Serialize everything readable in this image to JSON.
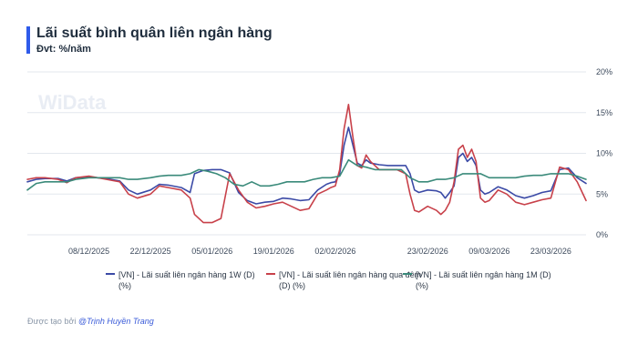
{
  "header": {
    "title": "Lãi suất bình quân liên ngân hàng",
    "subtitle": "Đvt: %/năm"
  },
  "footer": {
    "prefix": "Được tạo bởi",
    "author": "@Trịnh Huyền Trang"
  },
  "watermark": "WiData",
  "colors": {
    "series_1w": "#3b4aa6",
    "series_on": "#c8414a",
    "series_1m": "#3a8a7a",
    "grid": "#e3e7ee",
    "text": "#1f2d3d"
  },
  "chart_data": {
    "type": "line",
    "title": "Lãi suất bình quân liên ngân hàng",
    "subtitle": "Đvt: %/năm",
    "y_axis_side": "right",
    "ylim": [
      0,
      20
    ],
    "y_ticks": [
      0,
      5,
      10,
      15,
      20
    ],
    "y_tick_labels": [
      "0%",
      "5%",
      "10%",
      "15%",
      "20%"
    ],
    "x_range": [
      "2025-11-24",
      "2026-03-31"
    ],
    "x_ticks": [
      {
        "date": "2025-12-08",
        "label": "08/12/2025"
      },
      {
        "date": "2025-12-22",
        "label": "22/12/2025"
      },
      {
        "date": "2026-01-05",
        "label": "05/01/2026"
      },
      {
        "date": "2026-01-19",
        "label": "19/01/2026"
      },
      {
        "date": "2026-02-02",
        "label": "02/02/2026"
      },
      {
        "date": "2026-02-23",
        "label": "23/02/2026"
      },
      {
        "date": "2026-03-09",
        "label": "09/03/2026"
      },
      {
        "date": "2026-03-23",
        "label": "23/03/2026"
      }
    ],
    "grid": true,
    "legend_position": "bottom",
    "series": [
      {
        "name": "[VN] - Lãi suất liên ngân hàng 1W (D) (%)",
        "color": "#3b4aa6",
        "points": [
          [
            "2025-11-24",
            6.5
          ],
          [
            "2025-11-26",
            6.8
          ],
          [
            "2025-11-28",
            6.9
          ],
          [
            "2025-12-01",
            6.9
          ],
          [
            "2025-12-03",
            6.6
          ],
          [
            "2025-12-05",
            7.0
          ],
          [
            "2025-12-08",
            7.1
          ],
          [
            "2025-12-10",
            7.0
          ],
          [
            "2025-12-12",
            6.9
          ],
          [
            "2025-12-15",
            6.6
          ],
          [
            "2025-12-17",
            5.5
          ],
          [
            "2025-12-19",
            5.0
          ],
          [
            "2025-12-22",
            5.5
          ],
          [
            "2025-12-24",
            6.2
          ],
          [
            "2025-12-26",
            6.1
          ],
          [
            "2025-12-29",
            5.8
          ],
          [
            "2025-12-31",
            5.2
          ],
          [
            "2026-01-01",
            7.5
          ],
          [
            "2026-01-03",
            7.9
          ],
          [
            "2026-01-05",
            8.0
          ],
          [
            "2026-01-07",
            8.0
          ],
          [
            "2026-01-09",
            7.6
          ],
          [
            "2026-01-11",
            5.2
          ],
          [
            "2026-01-13",
            4.2
          ],
          [
            "2026-01-15",
            3.8
          ],
          [
            "2026-01-17",
            4.0
          ],
          [
            "2026-01-19",
            4.1
          ],
          [
            "2026-01-21",
            4.5
          ],
          [
            "2026-01-23",
            4.4
          ],
          [
            "2026-01-25",
            4.2
          ],
          [
            "2026-01-27",
            4.3
          ],
          [
            "2026-01-29",
            5.5
          ],
          [
            "2026-01-31",
            6.2
          ],
          [
            "2026-02-01",
            6.4
          ],
          [
            "2026-02-02",
            6.5
          ],
          [
            "2026-02-03",
            7.5
          ],
          [
            "2026-02-04",
            11.0
          ],
          [
            "2026-02-05",
            13.2
          ],
          [
            "2026-02-06",
            11.0
          ],
          [
            "2026-02-07",
            8.8
          ],
          [
            "2026-02-08",
            8.5
          ],
          [
            "2026-02-09",
            9.2
          ],
          [
            "2026-02-10",
            8.8
          ],
          [
            "2026-02-12",
            8.6
          ],
          [
            "2026-02-14",
            8.5
          ],
          [
            "2026-02-16",
            8.5
          ],
          [
            "2026-02-18",
            8.5
          ],
          [
            "2026-02-19",
            7.5
          ],
          [
            "2026-02-20",
            5.5
          ],
          [
            "2026-02-21",
            5.2
          ],
          [
            "2026-02-23",
            5.5
          ],
          [
            "2026-02-25",
            5.4
          ],
          [
            "2026-02-26",
            5.2
          ],
          [
            "2026-02-27",
            4.5
          ],
          [
            "2026-02-28",
            5.2
          ],
          [
            "2026-03-01",
            6.0
          ],
          [
            "2026-03-02",
            9.5
          ],
          [
            "2026-03-03",
            10.0
          ],
          [
            "2026-03-04",
            9.0
          ],
          [
            "2026-03-05",
            9.5
          ],
          [
            "2026-03-06",
            8.5
          ],
          [
            "2026-03-07",
            5.5
          ],
          [
            "2026-03-08",
            5.0
          ],
          [
            "2026-03-09",
            5.2
          ],
          [
            "2026-03-11",
            5.9
          ],
          [
            "2026-03-13",
            5.5
          ],
          [
            "2026-03-15",
            4.8
          ],
          [
            "2026-03-17",
            4.5
          ],
          [
            "2026-03-19",
            4.8
          ],
          [
            "2026-03-21",
            5.2
          ],
          [
            "2026-03-23",
            5.4
          ],
          [
            "2026-03-25",
            8.0
          ],
          [
            "2026-03-27",
            8.2
          ],
          [
            "2026-03-29",
            7.0
          ],
          [
            "2026-03-31",
            6.3
          ]
        ]
      },
      {
        "name": "[VN] - Lãi suất liên ngân hàng qua đêm (D) (%)",
        "color": "#c8414a",
        "points": [
          [
            "2025-11-24",
            6.8
          ],
          [
            "2025-11-26",
            7.0
          ],
          [
            "2025-11-28",
            7.0
          ],
          [
            "2025-12-01",
            6.8
          ],
          [
            "2025-12-03",
            6.4
          ],
          [
            "2025-12-05",
            7.0
          ],
          [
            "2025-12-08",
            7.2
          ],
          [
            "2025-12-10",
            7.0
          ],
          [
            "2025-12-12",
            6.8
          ],
          [
            "2025-12-15",
            6.5
          ],
          [
            "2025-12-17",
            5.0
          ],
          [
            "2025-12-19",
            4.5
          ],
          [
            "2025-12-22",
            5.0
          ],
          [
            "2025-12-24",
            6.0
          ],
          [
            "2025-12-26",
            5.8
          ],
          [
            "2025-12-29",
            5.5
          ],
          [
            "2025-12-31",
            4.5
          ],
          [
            "2026-01-01",
            2.5
          ],
          [
            "2026-01-03",
            1.5
          ],
          [
            "2026-01-05",
            1.5
          ],
          [
            "2026-01-07",
            2.0
          ],
          [
            "2026-01-09",
            7.5
          ],
          [
            "2026-01-11",
            5.5
          ],
          [
            "2026-01-13",
            4.0
          ],
          [
            "2026-01-15",
            3.3
          ],
          [
            "2026-01-17",
            3.5
          ],
          [
            "2026-01-19",
            3.8
          ],
          [
            "2026-01-21",
            4.0
          ],
          [
            "2026-01-23",
            3.5
          ],
          [
            "2026-01-25",
            3.0
          ],
          [
            "2026-01-27",
            3.2
          ],
          [
            "2026-01-29",
            5.0
          ],
          [
            "2026-01-31",
            5.5
          ],
          [
            "2026-02-01",
            5.8
          ],
          [
            "2026-02-02",
            6.0
          ],
          [
            "2026-02-03",
            8.0
          ],
          [
            "2026-02-04",
            13.0
          ],
          [
            "2026-02-05",
            16.0
          ],
          [
            "2026-02-06",
            12.0
          ],
          [
            "2026-02-07",
            8.5
          ],
          [
            "2026-02-08",
            8.2
          ],
          [
            "2026-02-09",
            9.8
          ],
          [
            "2026-02-10",
            9.0
          ],
          [
            "2026-02-12",
            8.0
          ],
          [
            "2026-02-14",
            8.0
          ],
          [
            "2026-02-16",
            8.0
          ],
          [
            "2026-02-18",
            7.5
          ],
          [
            "2026-02-19",
            5.0
          ],
          [
            "2026-02-20",
            3.0
          ],
          [
            "2026-02-21",
            2.8
          ],
          [
            "2026-02-23",
            3.5
          ],
          [
            "2026-02-25",
            3.0
          ],
          [
            "2026-02-26",
            2.5
          ],
          [
            "2026-02-27",
            3.0
          ],
          [
            "2026-02-28",
            4.0
          ],
          [
            "2026-03-01",
            6.5
          ],
          [
            "2026-03-02",
            10.5
          ],
          [
            "2026-03-03",
            11.0
          ],
          [
            "2026-03-04",
            9.5
          ],
          [
            "2026-03-05",
            10.5
          ],
          [
            "2026-03-06",
            9.0
          ],
          [
            "2026-03-07",
            4.5
          ],
          [
            "2026-03-08",
            4.0
          ],
          [
            "2026-03-09",
            4.2
          ],
          [
            "2026-03-11",
            5.5
          ],
          [
            "2026-03-13",
            5.0
          ],
          [
            "2026-03-15",
            4.0
          ],
          [
            "2026-03-17",
            3.7
          ],
          [
            "2026-03-19",
            4.0
          ],
          [
            "2026-03-21",
            4.3
          ],
          [
            "2026-03-23",
            4.5
          ],
          [
            "2026-03-25",
            8.3
          ],
          [
            "2026-03-27",
            8.0
          ],
          [
            "2026-03-29",
            6.5
          ],
          [
            "2026-03-31",
            4.2
          ]
        ]
      },
      {
        "name": "[VN] - Lãi suất liên ngân hàng 1M (D) (%)",
        "color": "#3a8a7a",
        "points": [
          [
            "2025-11-24",
            5.5
          ],
          [
            "2025-11-26",
            6.3
          ],
          [
            "2025-11-28",
            6.5
          ],
          [
            "2025-12-01",
            6.5
          ],
          [
            "2025-12-03",
            6.5
          ],
          [
            "2025-12-05",
            6.8
          ],
          [
            "2025-12-08",
            7.0
          ],
          [
            "2025-12-10",
            7.0
          ],
          [
            "2025-12-12",
            7.0
          ],
          [
            "2025-12-15",
            7.0
          ],
          [
            "2025-12-17",
            6.8
          ],
          [
            "2025-12-19",
            6.8
          ],
          [
            "2025-12-22",
            7.0
          ],
          [
            "2025-12-24",
            7.2
          ],
          [
            "2025-12-26",
            7.3
          ],
          [
            "2025-12-29",
            7.3
          ],
          [
            "2025-12-31",
            7.5
          ],
          [
            "2026-01-02",
            8.0
          ],
          [
            "2026-01-04",
            7.8
          ],
          [
            "2026-01-06",
            7.5
          ],
          [
            "2026-01-08",
            7.0
          ],
          [
            "2026-01-10",
            6.2
          ],
          [
            "2026-01-12",
            6.0
          ],
          [
            "2026-01-14",
            6.5
          ],
          [
            "2026-01-16",
            6.0
          ],
          [
            "2026-01-18",
            6.0
          ],
          [
            "2026-01-20",
            6.2
          ],
          [
            "2026-01-22",
            6.5
          ],
          [
            "2026-01-24",
            6.5
          ],
          [
            "2026-01-26",
            6.5
          ],
          [
            "2026-01-28",
            6.8
          ],
          [
            "2026-01-30",
            7.0
          ],
          [
            "2026-02-01",
            7.0
          ],
          [
            "2026-02-03",
            7.2
          ],
          [
            "2026-02-05",
            9.2
          ],
          [
            "2026-02-07",
            8.5
          ],
          [
            "2026-02-09",
            8.3
          ],
          [
            "2026-02-11",
            8.0
          ],
          [
            "2026-02-13",
            8.0
          ],
          [
            "2026-02-15",
            8.0
          ],
          [
            "2026-02-17",
            8.0
          ],
          [
            "2026-02-19",
            7.0
          ],
          [
            "2026-02-21",
            6.5
          ],
          [
            "2026-02-23",
            6.5
          ],
          [
            "2026-02-25",
            6.8
          ],
          [
            "2026-02-27",
            6.8
          ],
          [
            "2026-03-01",
            7.0
          ],
          [
            "2026-03-03",
            7.5
          ],
          [
            "2026-03-05",
            7.5
          ],
          [
            "2026-03-07",
            7.5
          ],
          [
            "2026-03-09",
            7.0
          ],
          [
            "2026-03-11",
            7.0
          ],
          [
            "2026-03-13",
            7.0
          ],
          [
            "2026-03-15",
            7.0
          ],
          [
            "2026-03-17",
            7.2
          ],
          [
            "2026-03-19",
            7.3
          ],
          [
            "2026-03-21",
            7.3
          ],
          [
            "2026-03-23",
            7.5
          ],
          [
            "2026-03-25",
            7.5
          ],
          [
            "2026-03-27",
            7.5
          ],
          [
            "2026-03-29",
            7.2
          ],
          [
            "2026-03-31",
            6.8
          ]
        ]
      }
    ]
  }
}
